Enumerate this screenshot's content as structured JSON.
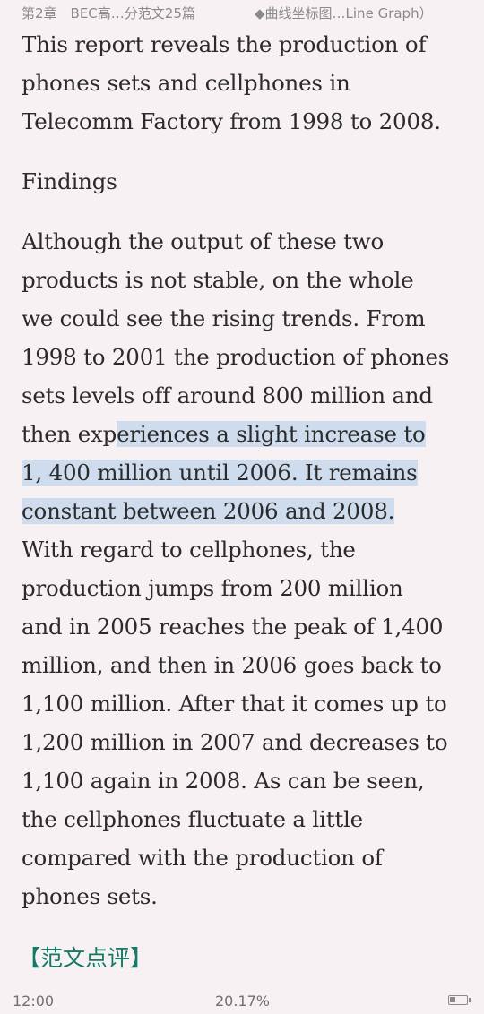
{
  "header": {
    "chapter": "第2章　BEC高…分范文25篇",
    "section": "◆曲线坐标图…Line Graph）"
  },
  "content": {
    "intro_lines": [
      "This report reveals the production of",
      "phones sets and cellphones in",
      "Telecomm Factory from 1998 to 2008."
    ],
    "findings": "Findings",
    "body_lines": [
      "Although the output of these two",
      "products is not stable, on the whole",
      "we could see the rising trends. From",
      "1998 to 2001 the production of phones",
      "sets levels off around 800 million and"
    ],
    "hl_line1_pre": "then exp",
    "hl_line1_hl": "eriences a slight increase to",
    "hl_line2": "1, 400 million until 2006. It remains",
    "hl_line3": "constant between 2006 and 2008.",
    "tail_lines": [
      "With regard to cellphones, the",
      "production jumps from 200 million",
      "and in 2005 reaches the peak of 1,400",
      "million, and then in 2006 goes back to",
      "1,100 million. After that it comes up to",
      "1,200 million in 2007 and decreases to",
      "1,100 again in 2008. As can be seen,",
      "the cellphones fluctuate a little",
      "compared with the production of",
      "phones sets."
    ],
    "next_heading": "【范文点评】"
  },
  "footer": {
    "time": "12:00",
    "progress": "20.17%",
    "battery_level": 0.35
  },
  "colors": {
    "background": "#f7f1f4",
    "highlight": "#cfdcee",
    "heading_green": "#137a63"
  },
  "icons": {
    "battery": "battery-icon"
  }
}
